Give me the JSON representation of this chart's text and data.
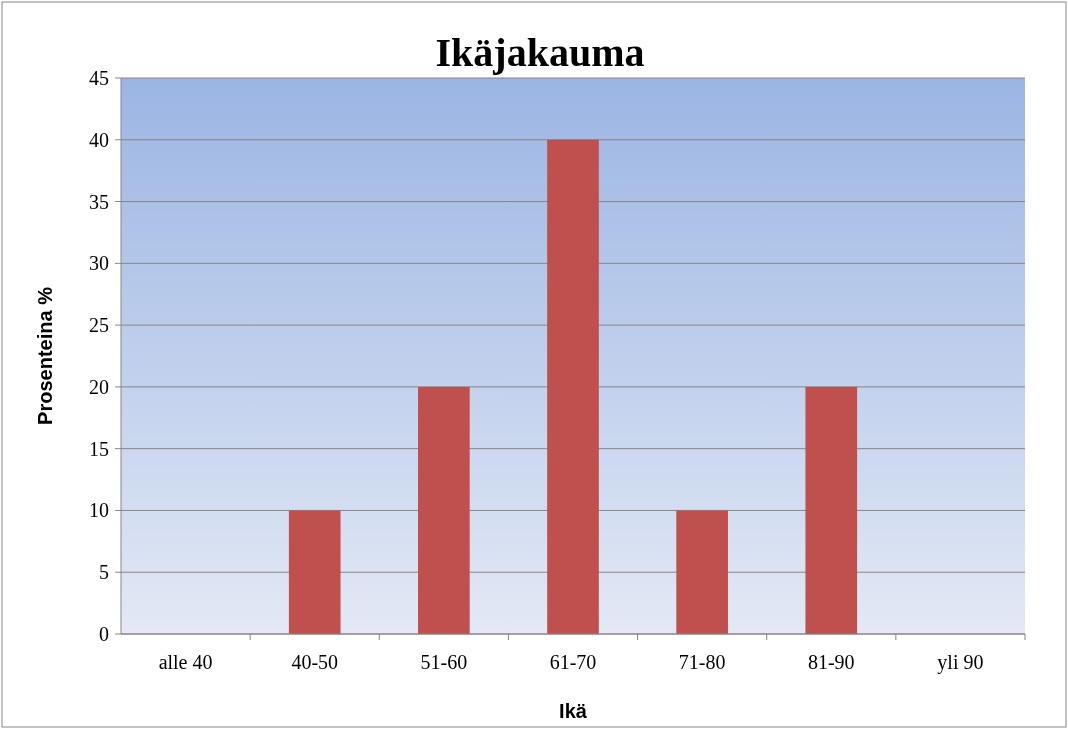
{
  "chart_data": {
    "type": "bar",
    "title": "Ikäjakauma",
    "xlabel": "Ikä",
    "ylabel": "Prosenteina %",
    "categories": [
      "alle 40",
      "40-50",
      "51-60",
      "61-70",
      "71-80",
      "81-90",
      "yli 90"
    ],
    "values": [
      0,
      10,
      20,
      40,
      10,
      20,
      0
    ],
    "color": "#c0504d",
    "ylim": [
      0,
      45
    ],
    "yticks": [
      0,
      5,
      10,
      15,
      20,
      25,
      30,
      35,
      40,
      45
    ],
    "grid": "y"
  }
}
